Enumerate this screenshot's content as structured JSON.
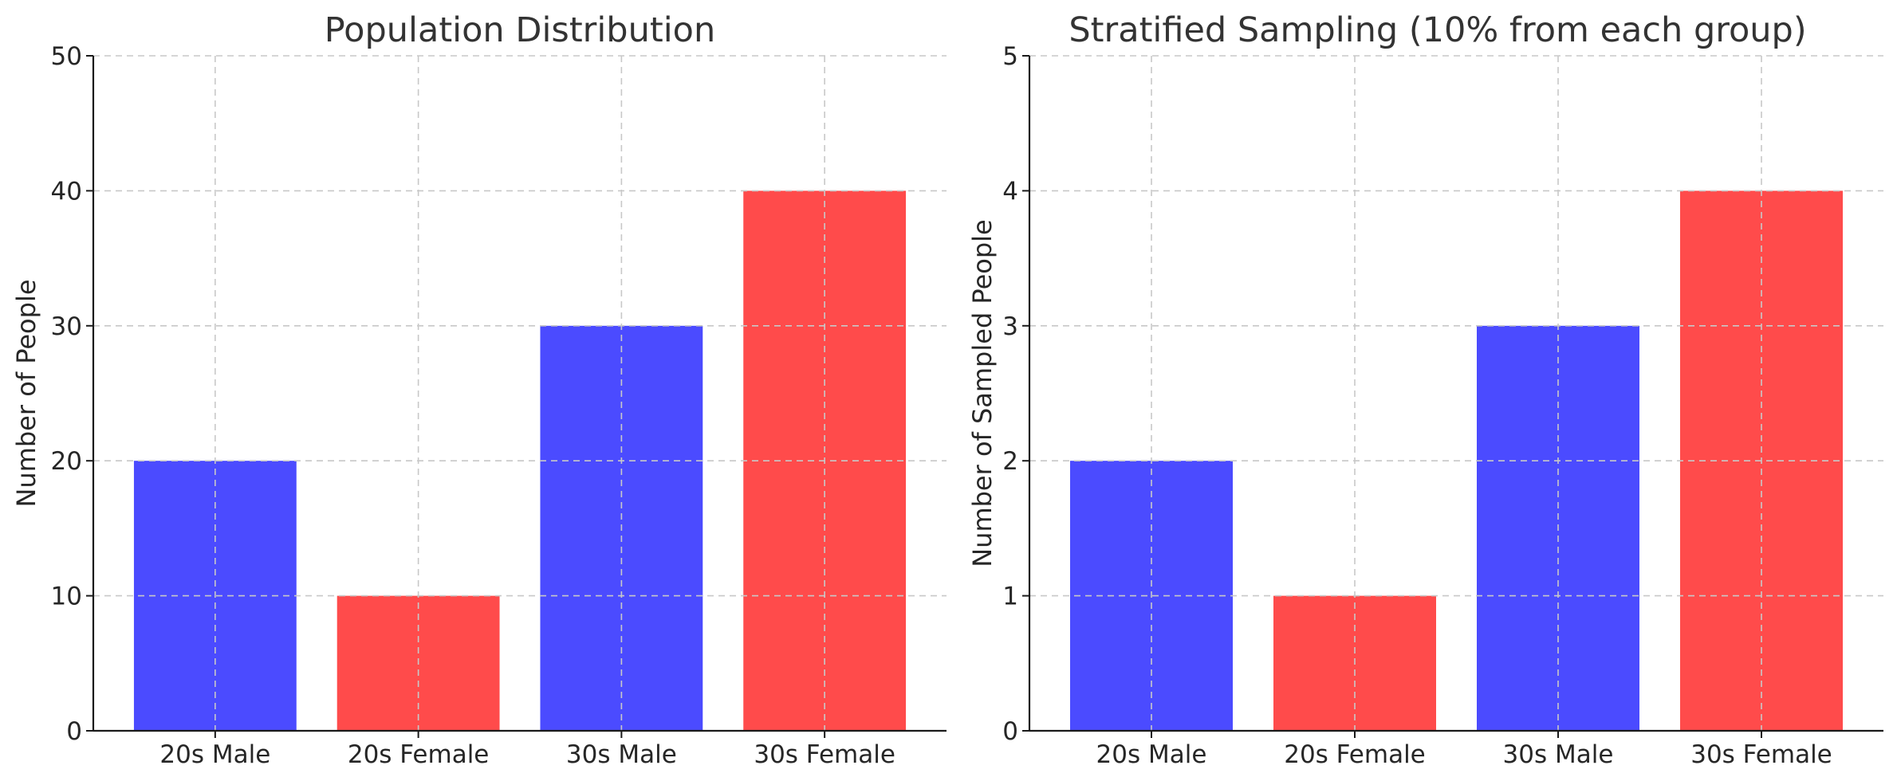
{
  "chart_data": [
    {
      "type": "bar",
      "title": "Population Distribution",
      "xlabel": "",
      "ylabel": "Number of People",
      "categories": [
        "20s Male",
        "20s Female",
        "30s Male",
        "30s Female"
      ],
      "values": [
        20,
        10,
        30,
        40
      ],
      "bar_colors": [
        "#4b4bff",
        "#ff4b4b",
        "#4b4bff",
        "#ff4b4b"
      ],
      "ylim": [
        0,
        50
      ],
      "yticks": [
        0,
        10,
        20,
        30,
        40,
        50
      ],
      "grid": true
    },
    {
      "type": "bar",
      "title": "Stratified Sampling (10% from each group)",
      "xlabel": "",
      "ylabel": "Number of Sampled People",
      "categories": [
        "20s Male",
        "20s Female",
        "30s Male",
        "30s Female"
      ],
      "values": [
        2,
        1,
        3,
        4
      ],
      "bar_colors": [
        "#4b4bff",
        "#ff4b4b",
        "#4b4bff",
        "#ff4b4b"
      ],
      "ylim": [
        0,
        5
      ],
      "yticks": [
        0,
        1,
        2,
        3,
        4,
        5
      ],
      "grid": true
    }
  ]
}
